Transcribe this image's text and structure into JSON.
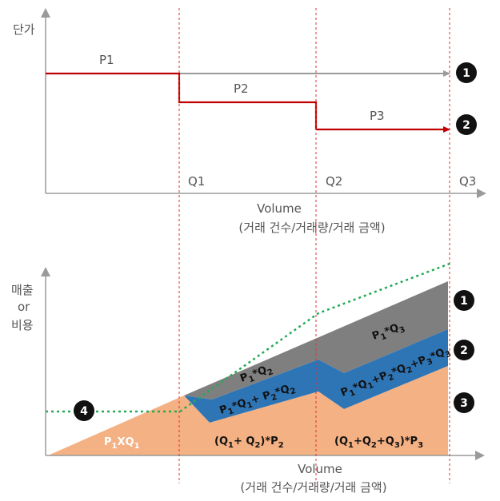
{
  "top_chart": {
    "y_axis_label": "단가",
    "x_axis_label_line1": "Volume",
    "x_axis_label_line2": "(거래 건수/거래량/거래 금액)",
    "ticks": [
      "Q1",
      "Q2",
      "Q3"
    ],
    "price_labels": [
      "P1",
      "P2",
      "P3"
    ],
    "markers": [
      "1",
      "2"
    ]
  },
  "bottom_chart": {
    "y_axis_label_lines": [
      "매출",
      "or",
      "비용"
    ],
    "x_axis_label_line1": "Volume",
    "x_axis_label_line2": "(거래 건수/거래량/거래 금액)",
    "markers": [
      "1",
      "2",
      "3",
      "4"
    ],
    "regions": {
      "p1_xq1": {
        "main": "P",
        "sub": "1",
        "mid": "XQ",
        "sub2": "1"
      },
      "q1_q2_p2": "(Q1+ Q2)*P2",
      "q1_q2_q3_p3": "(Q1+Q2+Q3)*P3",
      "p1_q2": "P1*Q2",
      "p1_q3": "P1*Q3",
      "blue_mid": "P1*Q1+ P2*Q2",
      "blue_right": "P1*Q1+P2*Q2+P3*Q3"
    }
  },
  "colors": {
    "axis": "#9a9a9a",
    "red": "#c00000",
    "gray_line": "#9a9a9a",
    "orange": "#f4b183",
    "blue": "#2e75b6",
    "dark_gray": "#7f7f7f",
    "green": "#22aa55",
    "guide": "#e03030"
  }
}
